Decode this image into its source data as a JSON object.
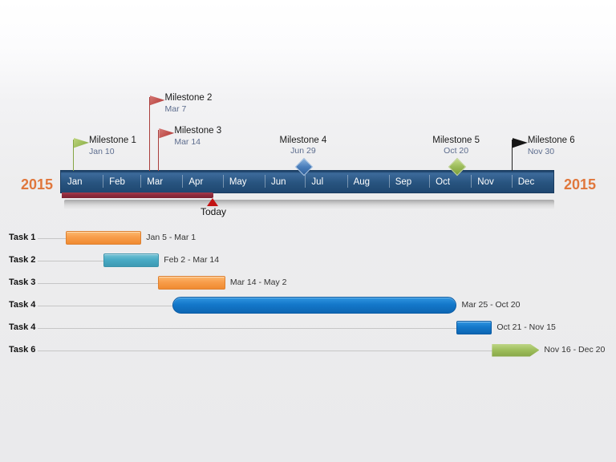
{
  "chart_data": {
    "type": "bar",
    "subtype": "gantt-timeline",
    "year": "2015",
    "today_label": "Today",
    "categories": [
      "Jan",
      "Feb",
      "Mar",
      "Apr",
      "May",
      "Jun",
      "Jul",
      "Aug",
      "Sep",
      "Oct",
      "Nov",
      "Dec"
    ],
    "legend_position": "none",
    "colors": {
      "timeline_bar": "#27537f",
      "year_label": "#e0773c",
      "progress_bar": "#8c2a3b",
      "today_marker": "#c21414",
      "task_orange": "#f79646",
      "task_teal": "#4bacc6",
      "task_blue": "#1176c8",
      "task_green": "#9bbb59"
    },
    "milestones": [
      {
        "name": "Milestone 1",
        "date": "Jan 10",
        "marker": "flag-green"
      },
      {
        "name": "Milestone 2",
        "date": "Mar 7",
        "marker": "flag-red"
      },
      {
        "name": "Milestone 3",
        "date": "Mar 14",
        "marker": "flag-red"
      },
      {
        "name": "Milestone 4",
        "date": "Jun 29",
        "marker": "diamond-blue"
      },
      {
        "name": "Milestone 5",
        "date": "Oct 20",
        "marker": "diamond-green"
      },
      {
        "name": "Milestone 6",
        "date": "Nov 30",
        "marker": "flag-black"
      }
    ],
    "tasks": [
      {
        "name": "Task 1",
        "start": "Jan 5",
        "end": "Mar 1",
        "color": "orange",
        "shape": "rect"
      },
      {
        "name": "Task 2",
        "start": "Feb 2",
        "end": "Mar 14",
        "color": "teal",
        "shape": "rect"
      },
      {
        "name": "Task 3",
        "start": "Mar 14",
        "end": "May 2",
        "color": "orange",
        "shape": "rect"
      },
      {
        "name": "Task 4",
        "start": "Mar 25",
        "end": "Oct 20",
        "color": "blue",
        "shape": "pill"
      },
      {
        "name": "Task 4",
        "start": "Oct 21",
        "end": "Nov 15",
        "color": "blue",
        "shape": "rect"
      },
      {
        "name": "Task 6",
        "start": "Nov 16",
        "end": "Dec 20",
        "color": "green",
        "shape": "arrow"
      }
    ]
  }
}
